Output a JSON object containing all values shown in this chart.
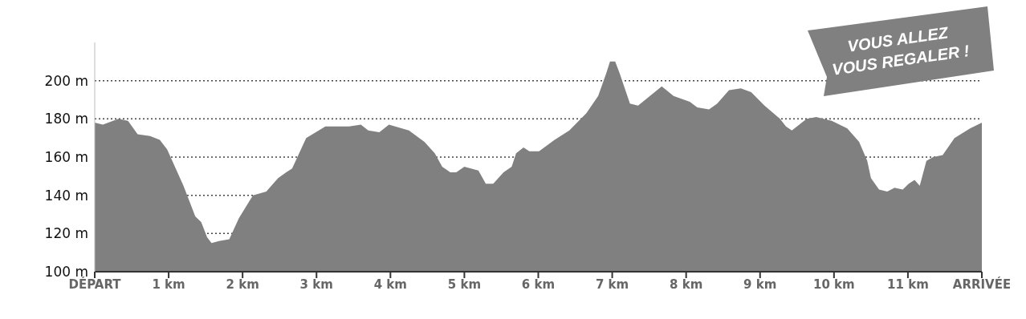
{
  "chart_data": {
    "type": "area",
    "color": "#808080",
    "x": [
      0,
      0.11,
      0.32,
      0.45,
      0.58,
      0.75,
      0.88,
      0.98,
      1.2,
      1.36,
      1.44,
      1.52,
      1.58,
      1.68,
      1.82,
      1.95,
      2.14,
      2.32,
      2.48,
      2.59,
      2.67,
      2.86,
      3.12,
      3.44,
      3.6,
      3.7,
      3.85,
      3.98,
      4.25,
      4.46,
      4.6,
      4.7,
      4.81,
      4.89,
      5.0,
      5.19,
      5.29,
      5.39,
      5.53,
      5.64,
      5.7,
      5.8,
      5.88,
      6.01,
      6.22,
      6.42,
      6.65,
      6.81,
      6.92,
      6.97,
      7.04,
      7.1,
      7.24,
      7.35,
      7.51,
      7.67,
      7.83,
      8.05,
      8.15,
      8.31,
      8.42,
      8.58,
      8.74,
      8.88,
      9.06,
      9.27,
      9.35,
      9.43,
      9.63,
      9.76,
      9.97,
      10.18,
      10.34,
      10.45,
      10.5,
      10.61,
      10.72,
      10.82,
      10.93,
      11.01,
      11.09,
      11.16,
      11.25,
      11.34,
      11.47,
      11.63,
      11.84,
      12
    ],
    "values": [
      178,
      177,
      180,
      179,
      172,
      171,
      169,
      164,
      145,
      129,
      126,
      118,
      115,
      116,
      117,
      128,
      140,
      142,
      149,
      152,
      154,
      170,
      176,
      176,
      177,
      174,
      173,
      177,
      174,
      168,
      162,
      155,
      152,
      152,
      155,
      153,
      146,
      146,
      152,
      155,
      162,
      165,
      163,
      163,
      169,
      174,
      183,
      192,
      204,
      210,
      210,
      204,
      188,
      187,
      192,
      197,
      192,
      189,
      186,
      185,
      188,
      195,
      196,
      194,
      187,
      180,
      176,
      174,
      180,
      181,
      179,
      175,
      168,
      158,
      149,
      143,
      142,
      144,
      143,
      146,
      148,
      145,
      158,
      160,
      161,
      170,
      175,
      178
    ],
    "xlim": [
      0,
      12
    ],
    "xticks": [
      {
        "value": 0,
        "label": "DÉPART"
      },
      {
        "value": 1,
        "label": "1 km"
      },
      {
        "value": 2,
        "label": "2 km"
      },
      {
        "value": 3,
        "label": "3 km"
      },
      {
        "value": 4,
        "label": "4 km"
      },
      {
        "value": 5,
        "label": "5 km"
      },
      {
        "value": 6,
        "label": "6 km"
      },
      {
        "value": 7,
        "label": "7 km"
      },
      {
        "value": 8,
        "label": "8 km"
      },
      {
        "value": 9,
        "label": "9 km"
      },
      {
        "value": 10,
        "label": "10 km"
      },
      {
        "value": 11,
        "label": "11 km"
      },
      {
        "value": 12,
        "label": "ARRIVÉE"
      }
    ],
    "ylim": [
      100,
      220
    ],
    "yticks": [
      {
        "value": 100,
        "label": "100 m"
      },
      {
        "value": 120,
        "label": "120 m"
      },
      {
        "value": 140,
        "label": "140 m"
      },
      {
        "value": 160,
        "label": "160 m"
      },
      {
        "value": 180,
        "label": "180 m"
      },
      {
        "value": 200,
        "label": "200 m"
      }
    ],
    "grid": "y",
    "line_style": "dotted",
    "annotations": [
      "VOUS ALLEZ VOUS REGALER !"
    ]
  }
}
